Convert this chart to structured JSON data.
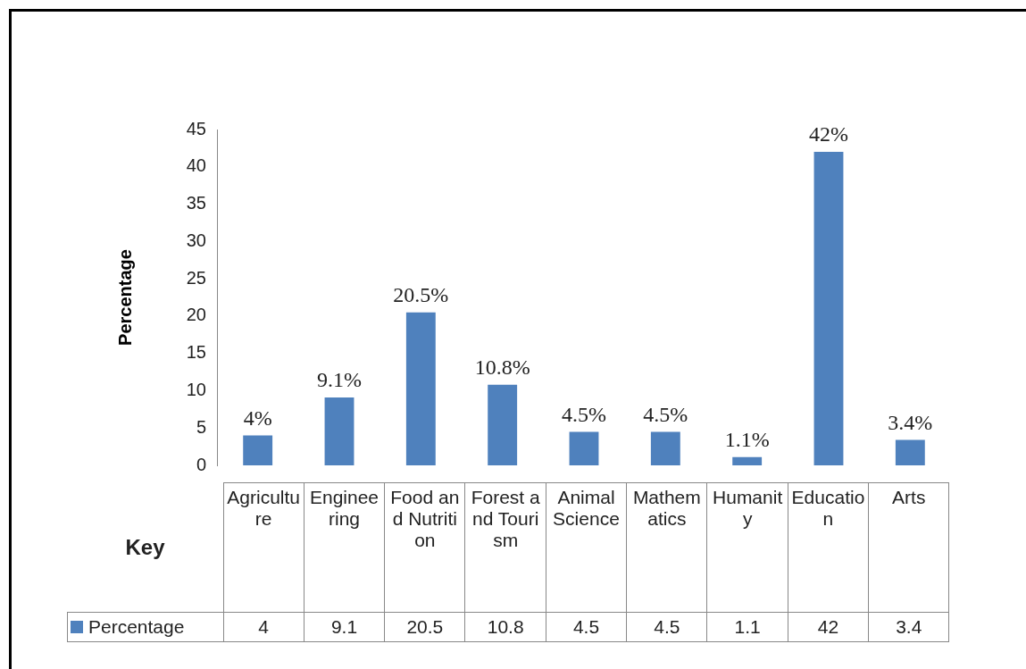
{
  "chart_data": {
    "type": "bar",
    "ylabel": "Percentage",
    "categories": [
      "Agriculture",
      "Engineering",
      "Food and Nutrition",
      "Forest and Tourism",
      "Animal Science",
      "Mathematics",
      "Humanity",
      "Education",
      "Arts"
    ],
    "series": [
      {
        "name": "Percentage",
        "color": "#4f81bd",
        "values": [
          4,
          9.1,
          20.5,
          10.8,
          4.5,
          4.5,
          1.1,
          42,
          3.4
        ],
        "value_labels": [
          "4%",
          "9.1%",
          "20.5%",
          "10.8%",
          "4.5%",
          "4.5%",
          "1.1%",
          "42%",
          "3.4%"
        ]
      }
    ],
    "ylim": [
      0,
      45
    ],
    "yticks": [
      0,
      5,
      10,
      15,
      20,
      25,
      30,
      35,
      40,
      45
    ],
    "grid": false,
    "legend": "bottom",
    "data_labels": true,
    "annotations": [
      "Key",
      "4",
      "9.1",
      "20.5",
      "10.8",
      "4.5",
      "4.5",
      "1.1",
      "42",
      "3.4"
    ]
  }
}
